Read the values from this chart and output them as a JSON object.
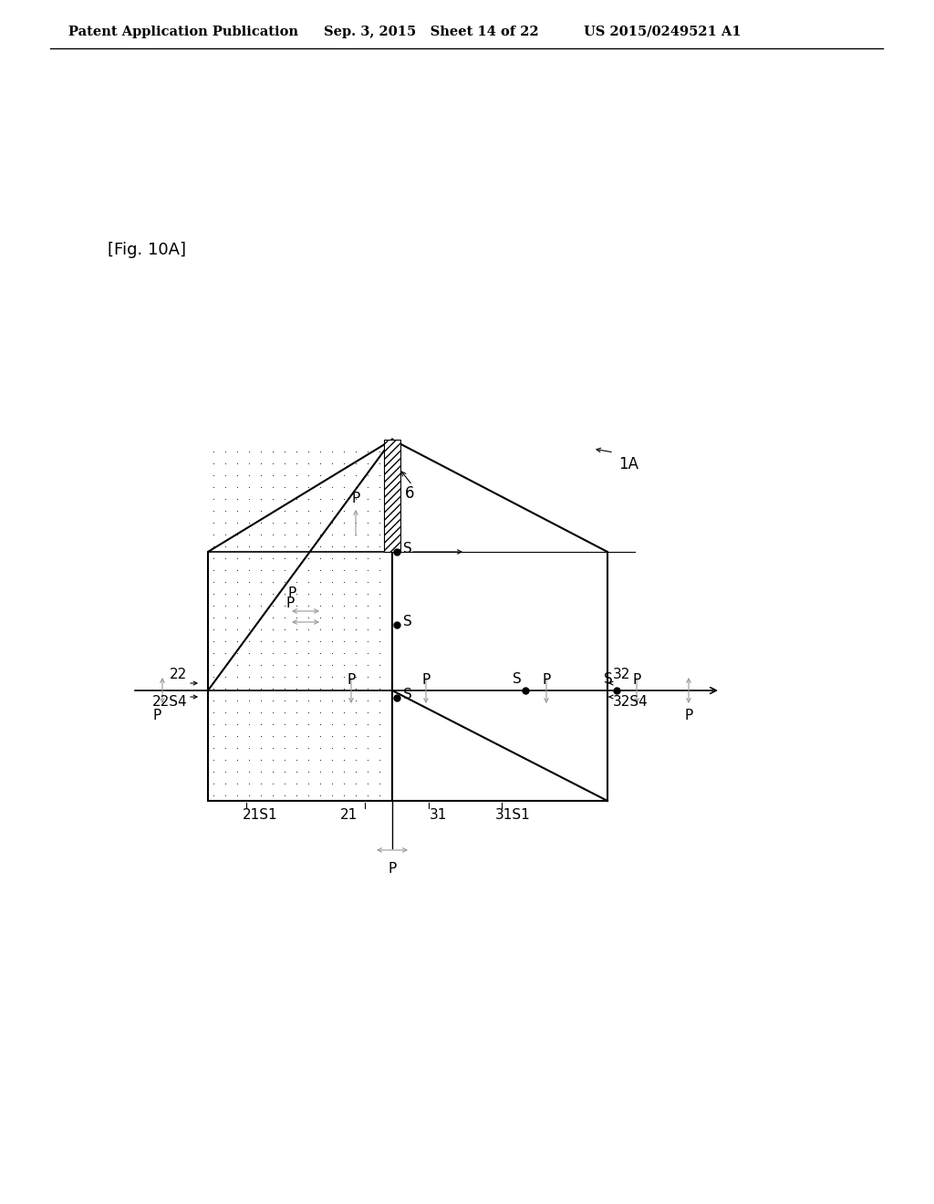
{
  "bg_color": "#ffffff",
  "header_left": "Patent Application Publication",
  "header_mid": "Sep. 3, 2015   Sheet 14 of 22",
  "header_right": "US 2015/0249521 A1",
  "fig_label": "[Fig. 10A]",
  "label_1A": "1A",
  "label_6": "6",
  "label_21": "21",
  "label_22": "22",
  "label_31": "31",
  "label_32": "32",
  "label_21S1": "21S1",
  "label_22S4": "22S4",
  "label_31S1": "31S1",
  "label_32S4": "32S4",
  "arrow_color": "#999999",
  "dot_color": "#000000",
  "line_color": "#000000"
}
